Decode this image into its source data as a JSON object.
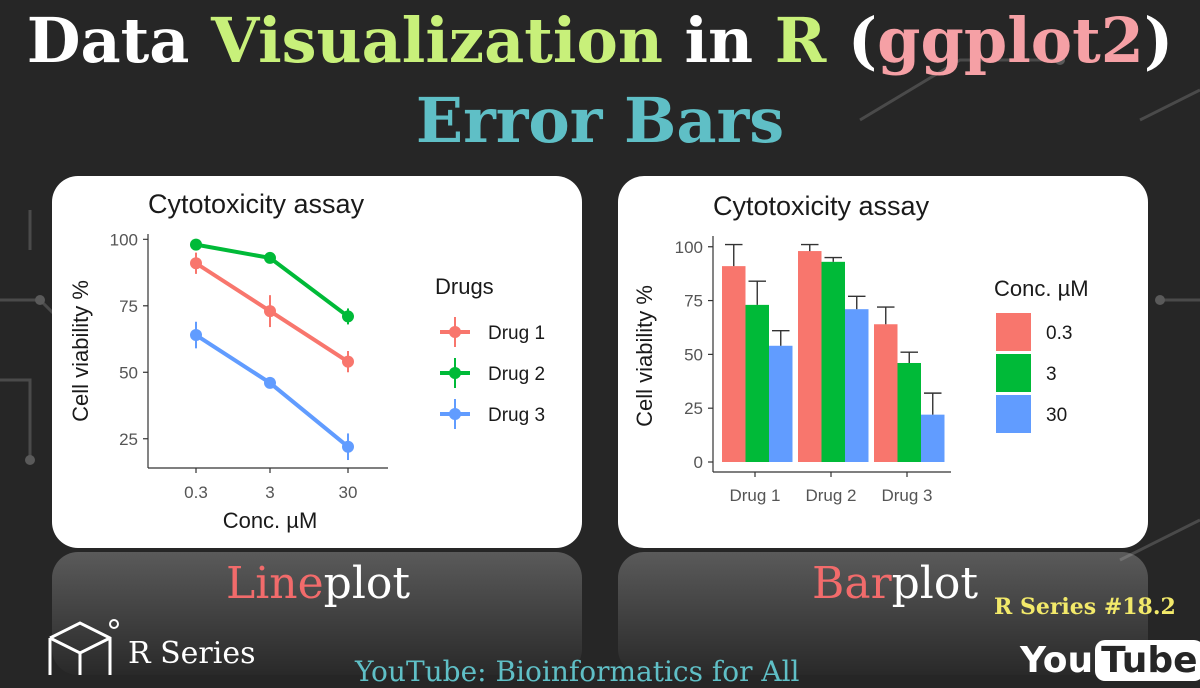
{
  "title": {
    "part1": "Data ",
    "part2": "Visualization",
    "part3": " in ",
    "part4": "R",
    "part5": " (",
    "part6": "ggplot2",
    "part7": ")",
    "line2": "Error Bars"
  },
  "captions": {
    "line_hl": "Line",
    "line_rest": "plot",
    "bar_hl": "Bar",
    "bar_rest": "plot"
  },
  "series_tag": "R Series #18.2",
  "brand": "R Series",
  "youtube": "YouTube: Bioinformatics for All",
  "yt_logo": {
    "you": "You",
    "tube": "Tube"
  },
  "colors": {
    "drug1": "#F8766D",
    "drug2": "#00BA38",
    "drug3": "#619CFF"
  },
  "chart_data": [
    {
      "type": "line",
      "title": "Cytotoxicity assay",
      "xlabel": "Conc. µM",
      "ylabel": "Cell viability %",
      "categories": [
        "0.3",
        "3",
        "30"
      ],
      "ylim": [
        14,
        102
      ],
      "yticks": [
        25,
        50,
        75,
        100
      ],
      "legend_title": "Drugs",
      "legend_position": "right",
      "series": [
        {
          "name": "Drug 1",
          "values": [
            91,
            73,
            54
          ],
          "errors": [
            4,
            6,
            4
          ]
        },
        {
          "name": "Drug 2",
          "values": [
            98,
            93,
            71
          ],
          "errors": [
            2,
            2,
            3
          ]
        },
        {
          "name": "Drug 3",
          "values": [
            64,
            46,
            22
          ],
          "errors": [
            5,
            2,
            5
          ]
        }
      ]
    },
    {
      "type": "bar",
      "title": "Cytotoxicity assay",
      "xlabel": "",
      "ylabel": "Cell viability %",
      "categories": [
        "Drug 1",
        "Drug 2",
        "Drug 3"
      ],
      "ylim": [
        0,
        105
      ],
      "yticks": [
        0,
        25,
        50,
        75,
        100
      ],
      "legend_title": "Conc. µM",
      "legend_position": "right",
      "series": [
        {
          "name": "0.3",
          "values": [
            91,
            98,
            64
          ],
          "errors": [
            10,
            3,
            8
          ]
        },
        {
          "name": "3",
          "values": [
            73,
            93,
            46
          ],
          "errors": [
            11,
            2,
            5
          ]
        },
        {
          "name": "30",
          "values": [
            54,
            71,
            22
          ],
          "errors": [
            7,
            6,
            10
          ]
        }
      ]
    }
  ]
}
